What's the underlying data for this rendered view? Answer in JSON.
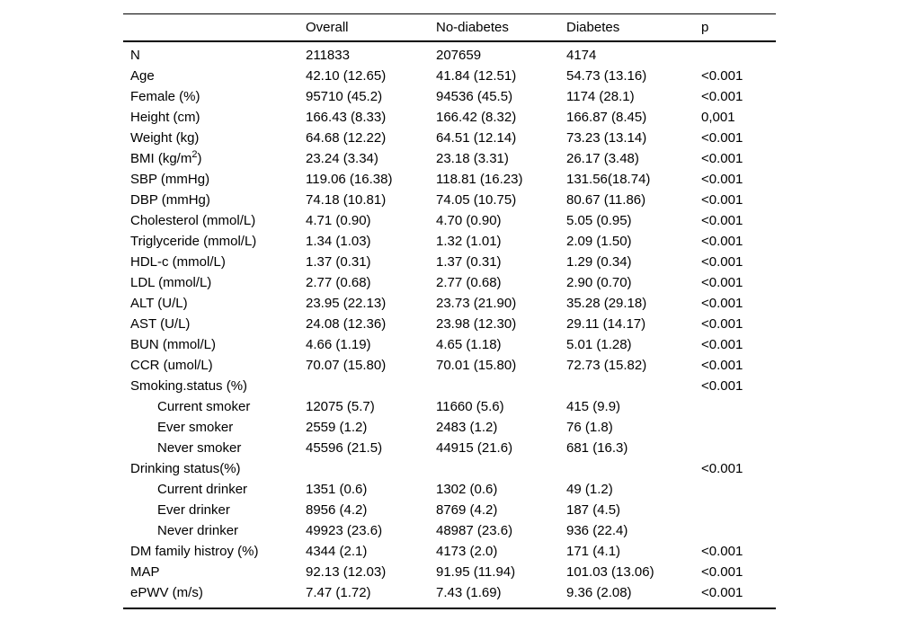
{
  "colors": {
    "background": "#ffffff",
    "text": "#000000",
    "border": "#000000"
  },
  "table": {
    "columns": [
      {
        "label": ""
      },
      {
        "label": "Overall"
      },
      {
        "label": "No-diabetes"
      },
      {
        "label": "Diabetes"
      },
      {
        "label": "p"
      }
    ],
    "rows": [
      {
        "label": "N",
        "indent": 0,
        "values": [
          "211833",
          "207659",
          "4174",
          ""
        ]
      },
      {
        "label": "Age",
        "indent": 0,
        "values": [
          "42.10 (12.65)",
          "41.84 (12.51)",
          "54.73 (13.16)",
          "<0.001"
        ]
      },
      {
        "label": "Female (%)",
        "indent": 0,
        "values": [
          "95710 (45.2)",
          "94536 (45.5)",
          "1174 (28.1)",
          "<0.001"
        ]
      },
      {
        "label": "Height (cm)",
        "indent": 0,
        "values": [
          "166.43 (8.33)",
          "166.42 (8.32)",
          "166.87 (8.45)",
          "0,001"
        ]
      },
      {
        "label": "Weight (kg)",
        "indent": 0,
        "values": [
          "64.68 (12.22)",
          "64.51 (12.14)",
          "73.23 (13.14)",
          "<0.001"
        ]
      },
      {
        "label": "BMI (kg/m^{2})",
        "indent": 0,
        "values": [
          "23.24 (3.34)",
          "23.18 (3.31)",
          "26.17 (3.48)",
          "<0.001"
        ]
      },
      {
        "label": "SBP (mmHg)",
        "indent": 0,
        "values": [
          "119.06 (16.38)",
          "118.81 (16.23)",
          "131.56(18.74)",
          "<0.001"
        ]
      },
      {
        "label": "DBP (mmHg)",
        "indent": 0,
        "values": [
          "74.18 (10.81)",
          "74.05 (10.75)",
          "80.67 (11.86)",
          "<0.001"
        ]
      },
      {
        "label": "Cholesterol (mmol/L)",
        "indent": 0,
        "values": [
          "4.71 (0.90)",
          "4.70 (0.90)",
          "5.05 (0.95)",
          "<0.001"
        ]
      },
      {
        "label": "Triglyceride (mmol/L)",
        "indent": 0,
        "values": [
          "1.34 (1.03)",
          "1.32 (1.01)",
          "2.09 (1.50)",
          "<0.001"
        ]
      },
      {
        "label": "HDL-c (mmol/L)",
        "indent": 0,
        "values": [
          "1.37 (0.31)",
          "1.37 (0.31)",
          "1.29 (0.34)",
          "<0.001"
        ]
      },
      {
        "label": "LDL (mmol/L)",
        "indent": 0,
        "values": [
          "2.77 (0.68)",
          "2.77 (0.68)",
          "2.90 (0.70)",
          "<0.001"
        ]
      },
      {
        "label": "ALT (U/L)",
        "indent": 0,
        "values": [
          "23.95 (22.13)",
          "23.73 (21.90)",
          "35.28 (29.18)",
          "<0.001"
        ]
      },
      {
        "label": "AST (U/L)",
        "indent": 0,
        "values": [
          "24.08 (12.36)",
          "23.98 (12.30)",
          "29.11 (14.17)",
          "<0.001"
        ]
      },
      {
        "label": "BUN (mmol/L)",
        "indent": 0,
        "values": [
          "4.66 (1.19)",
          "4.65 (1.18)",
          "5.01 (1.28)",
          "<0.001"
        ]
      },
      {
        "label": "CCR (umol/L)",
        "indent": 0,
        "values": [
          "70.07 (15.80)",
          "70.01 (15.80)",
          "72.73 (15.82)",
          "<0.001"
        ]
      },
      {
        "label": "Smoking.status (%)",
        "indent": 0,
        "values": [
          "",
          "",
          "",
          "<0.001"
        ]
      },
      {
        "label": "Current smoker",
        "indent": 1,
        "values": [
          "12075 (5.7)",
          "11660 (5.6)",
          "415 (9.9)",
          ""
        ]
      },
      {
        "label": "Ever smoker",
        "indent": 1,
        "values": [
          "2559 (1.2)",
          "2483 (1.2)",
          "76 (1.8)",
          ""
        ]
      },
      {
        "label": "Never smoker",
        "indent": 1,
        "values": [
          "45596 (21.5)",
          "44915 (21.6)",
          "681 (16.3)",
          ""
        ]
      },
      {
        "label": "Drinking status(%)",
        "indent": 0,
        "values": [
          "",
          "",
          "",
          "<0.001"
        ]
      },
      {
        "label": "Current drinker",
        "indent": 1,
        "values": [
          "1351 (0.6)",
          "1302 (0.6)",
          "49 (1.2)",
          ""
        ]
      },
      {
        "label": "Ever drinker",
        "indent": 1,
        "values": [
          "8956 (4.2)",
          "8769 (4.2)",
          "187 (4.5)",
          ""
        ]
      },
      {
        "label": "Never drinker",
        "indent": 1,
        "values": [
          "49923 (23.6)",
          "48987 (23.6)",
          "936 (22.4)",
          ""
        ]
      },
      {
        "label": "DM family histroy (%)",
        "indent": 0,
        "values": [
          "4344 (2.1)",
          "4173 (2.0)",
          "171 (4.1)",
          "<0.001"
        ]
      },
      {
        "label": "MAP",
        "indent": 0,
        "values": [
          "92.13 (12.03)",
          "91.95 (11.94)",
          "101.03 (13.06)",
          "<0.001"
        ]
      },
      {
        "label": "ePWV (m/s)",
        "indent": 0,
        "values": [
          "7.47 (1.72)",
          "7.43 (1.69)",
          "9.36 (2.08)",
          "<0.001"
        ]
      }
    ]
  }
}
